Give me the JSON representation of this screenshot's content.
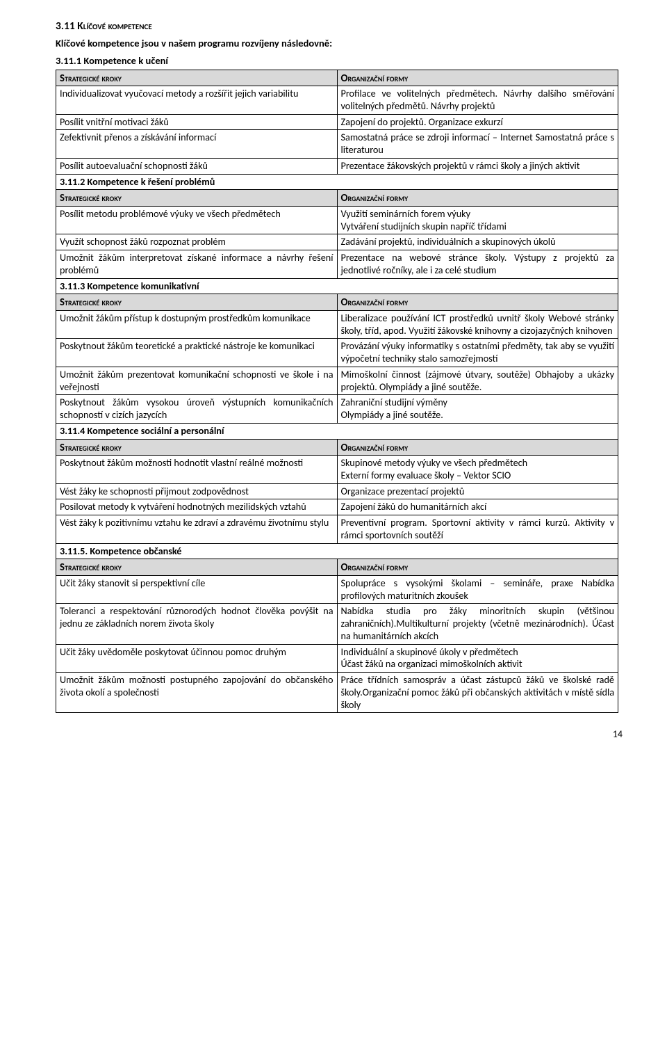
{
  "headings": {
    "h_main": "3.11 Klíčové kompetence",
    "h_intro": "Klíčové kompetence jsou v našem programu rozvíjeny následovně:",
    "h_3_11_1": "3.11.1 Kompetence k učení",
    "h_3_11_2": "3.11.2 Kompetence k řešení problémů",
    "h_3_11_3": "3.11.3 Kompetence komunikativní",
    "h_3_11_4": "3.11.4 Kompetence sociální a personální",
    "h_3_11_5": "3.11.5. Kompetence občanské"
  },
  "th_left": "Strategické kroky",
  "th_right": "Organizační formy",
  "t1": {
    "r0l": "Individualizovat vyučovací metody a rozšířit jejich variabilitu",
    "r0r": "Profilace ve volitelných předmětech. Návrhy dalšího směřování volitelných předmětů. Návrhy projektů",
    "r1l": "Posílit vnitřní motivaci žáků",
    "r1r": "Zapojení do projektů. Organizace exkurzí",
    "r2l": "Zefektivnit přenos a získávání informací",
    "r2r": "Samostatná práce se zdroji informací – Internet Samostatná práce s literaturou",
    "r3l": "Posílit autoevaluační schopnosti žáků",
    "r3r": "Prezentace žákovských projektů v rámci školy a jiných aktivit"
  },
  "t2": {
    "r0l": "Posílit metodu problémové výuky ve všech předmětech",
    "r0r": "Využití seminárních forem výuky\nVytváření studijních skupin napříč třídami",
    "r1l": "Využít schopnost žáků rozpoznat problém",
    "r1r": "Zadávání projektů, individuálních a skupinových úkolů",
    "r2l": "Umožnit žákům interpretovat získané informace a návrhy řešení problémů",
    "r2r": "Prezentace na webové stránce školy. Výstupy z projektů za jednotlivé ročníky, ale i za celé studium"
  },
  "t3": {
    "r0l": "Umožnit žákům přístup k dostupným prostředkům komunikace",
    "r0r": "Liberalizace používání ICT prostředků uvnitř školy Webové stránky školy, tříd, apod. Využití žákovské knihovny a cizojazyčných knihoven",
    "r1l": "Poskytnout žákům teoretické a praktické nástroje ke komunikaci",
    "r1r": "Provázání výuky informatiky s ostatními předměty, tak aby se využití výpočetní techniky stalo samozřejmostí",
    "r2l": "Umožnit žákům prezentovat komunikační schopnosti ve škole i na veřejnosti",
    "r2r": "Mimoškolní činnost (zájmové útvary, soutěže) Obhajoby a ukázky projektů. Olympiády a jiné soutěže.",
    "r3l": "Poskytnout žákům vysokou úroveň výstupních komunikačních schopností v cizích jazycích",
    "r3r": "Zahraniční studijní výměny\nOlympiády a jiné soutěže."
  },
  "t4": {
    "r0l": "Poskytnout žákům možnosti hodnotit vlastní reálné možnosti",
    "r0r": "Skupinové metody výuky ve všech předmětech\nExterní formy evaluace školy – Vektor SCIO",
    "r1l": "Vést žáky ke schopnosti přijmout zodpovědnost",
    "r1r": "Organizace prezentací projektů",
    "r2l": "Posilovat metody k vytváření hodnotných mezilidských vztahů",
    "r2r": "Zapojení žáků do humanitárních akcí",
    "r3l": "Vést žáky k pozitivnímu vztahu ke zdraví a zdravému životnímu stylu",
    "r3r": "Preventivní program. Sportovní aktivity v rámci kurzů. Aktivity v rámci sportovních soutěží"
  },
  "t5": {
    "r0l": "Učit žáky stanovit si perspektivní cíle",
    "r0r": "Spolupráce s vysokými školami – semináře, praxe Nabídka profilových maturitních zkoušek",
    "r1l": "Toleranci a respektování různorodých hodnot člověka povýšit na jednu ze základních norem života školy",
    "r1r": "Nabídka studia pro žáky minoritních skupin (většinou zahraničních).Multikulturní projekty (včetně mezinárodních). Účast na humanitárních akcích",
    "r2l": "Učit žáky uvědoměle poskytovat účinnou pomoc druhým",
    "r2r": "Individuální a skupinové úkoly v předmětech\nÚčast žáků na organizaci mimoškolních aktivit",
    "r3l": "Umožnit žákům možnosti postupného zapojování do občanského života okolí a společnosti",
    "r3r": "Práce třídních samospráv a účast zástupců žáků ve školské radě školy.Organizační pomoc žáků při občanských aktivitách v místě sídla školy"
  },
  "page_number": "14"
}
